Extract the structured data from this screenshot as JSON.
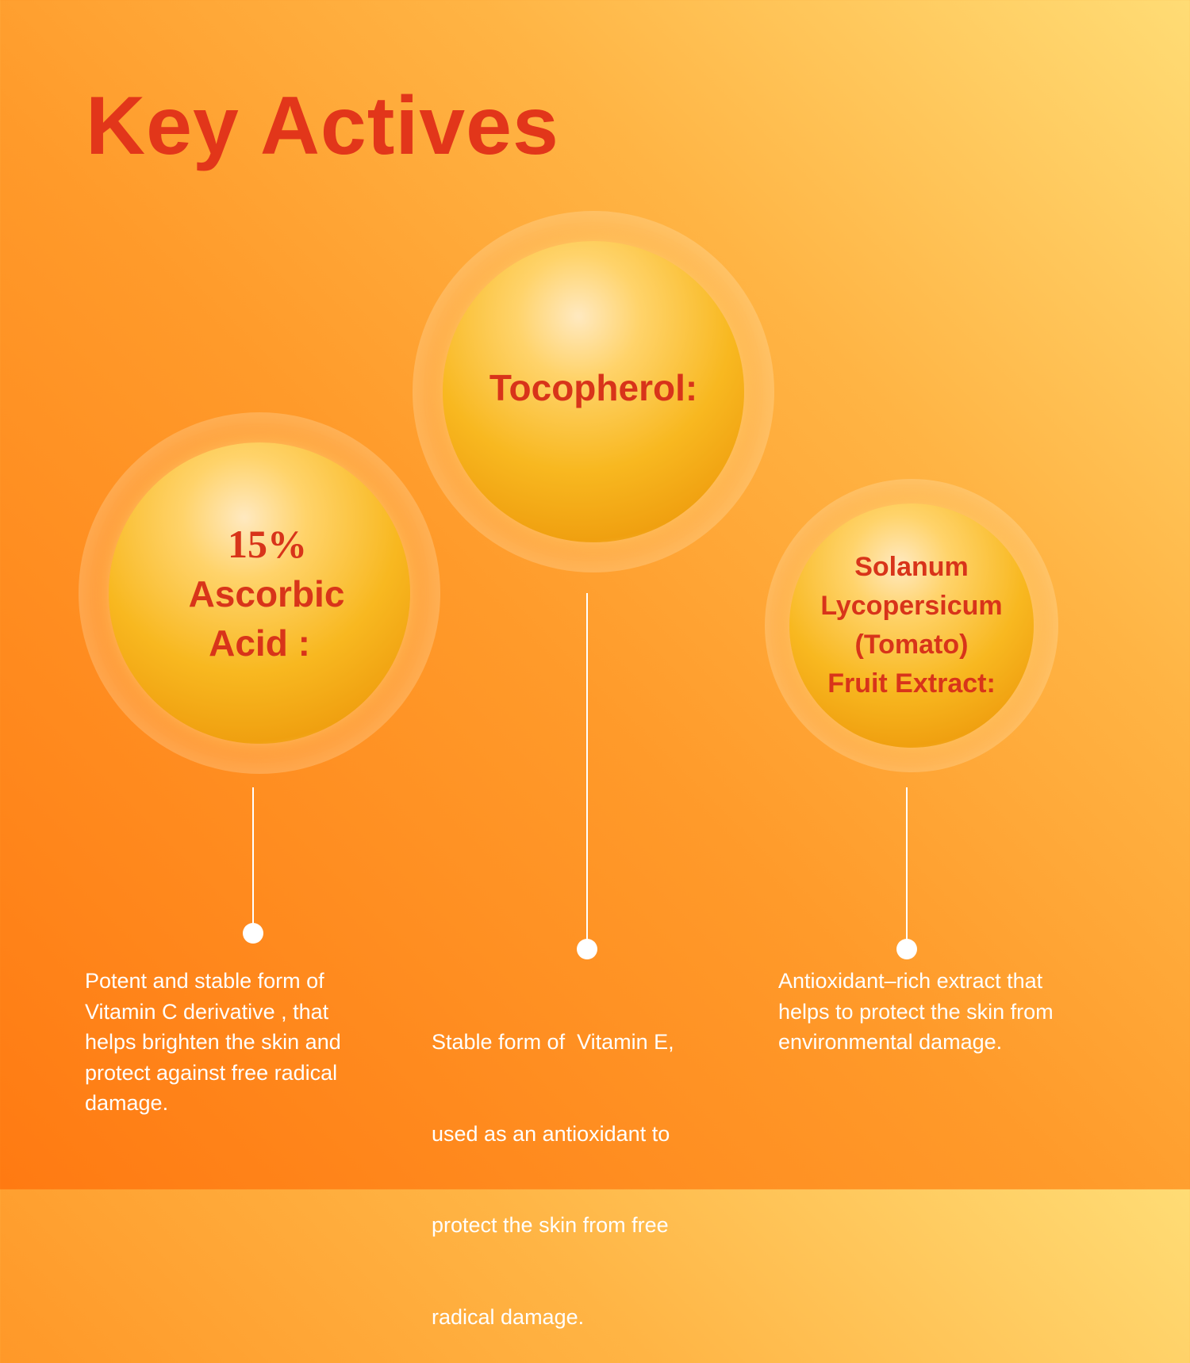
{
  "title": "Key Actives",
  "actives": [
    {
      "percent": "15%",
      "name_line1": "Ascorbic",
      "name_line2": "Acid :",
      "description": [
        "Potent and stable form of",
        "Vitamin C derivative , that",
        "helps brighten the skin and",
        "protect against free radical",
        "damage."
      ]
    },
    {
      "name_line1": "Tocopherol:",
      "description": [
        "Stable form of  Vitamin E,",
        "used as an antioxidant to",
        "protect the skin from free",
        "radical damage."
      ]
    },
    {
      "name_line1": "Solanum",
      "name_line2": "Lycopersicum",
      "name_line3": "(Tomato)",
      "name_line4": "Fruit Extract:",
      "description": [
        "Antioxidant–rich extract that",
        "helps to protect the skin from",
        "environmental damage."
      ]
    }
  ],
  "colors": {
    "title": "#e2361a",
    "bg_light": "#ffdc75",
    "bg_dark": "#ff7a12"
  }
}
